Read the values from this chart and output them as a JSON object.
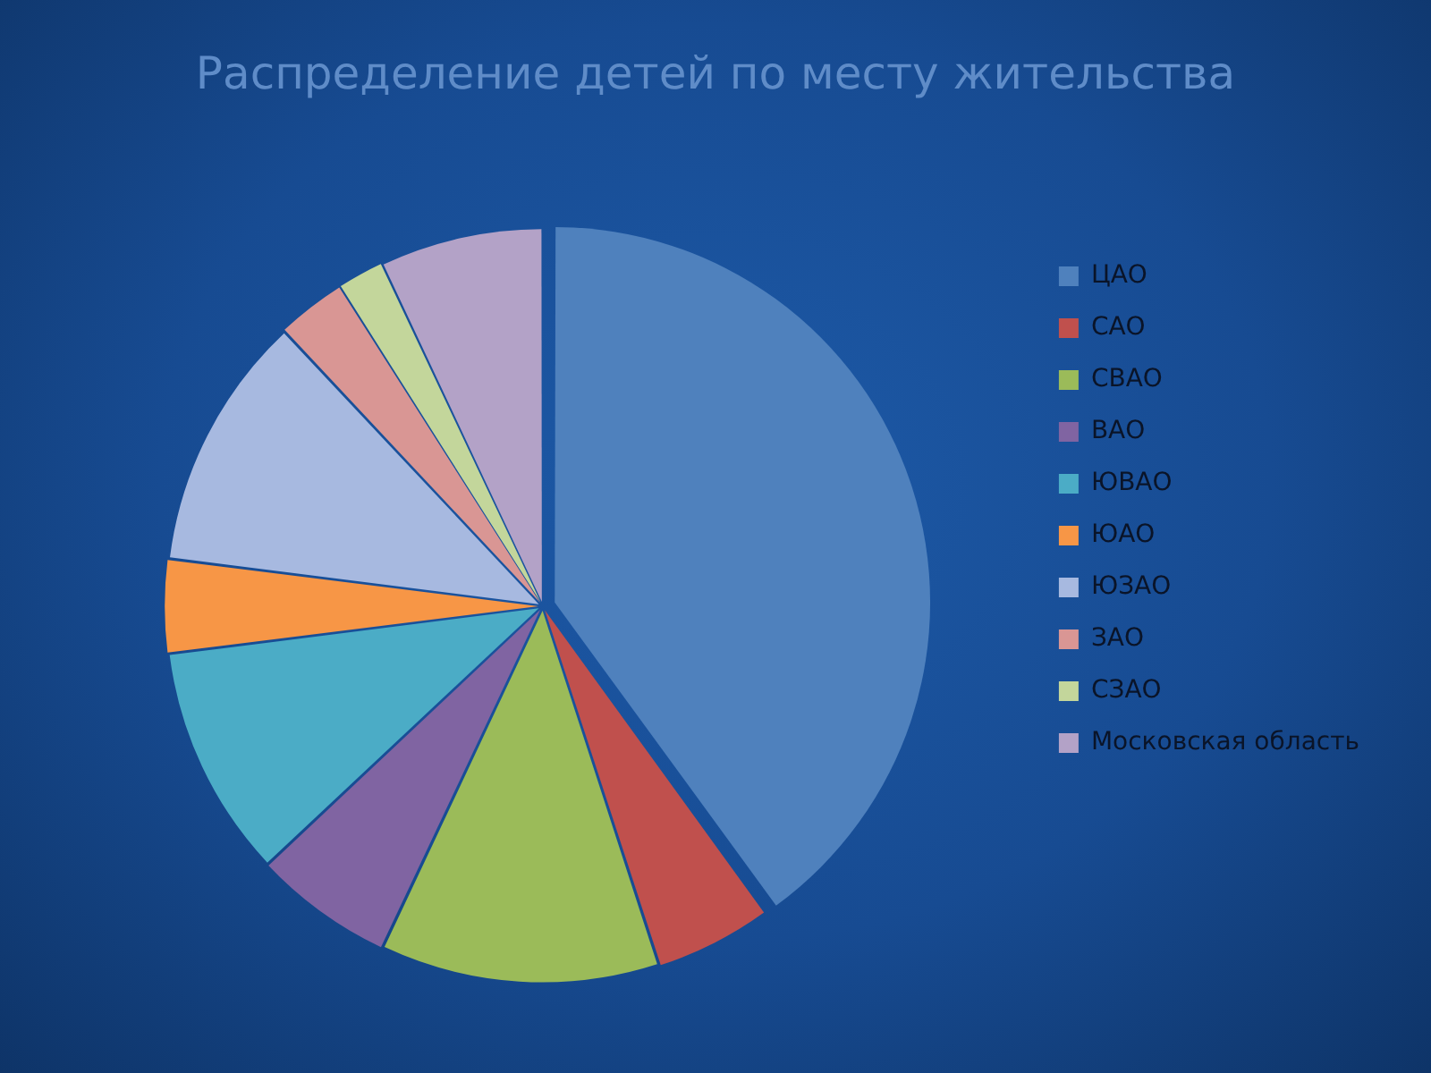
{
  "chart_data": {
    "type": "pie",
    "title": "Распределение детей по месту жительства",
    "categories": [
      "ЦАО",
      "САО",
      "СВАО",
      "ВАО",
      "ЮВАО",
      "ЮАО",
      "ЮЗАО",
      "ЗАО",
      "СЗАО",
      "Московская область"
    ],
    "values": [
      40,
      5,
      12,
      6,
      10,
      4,
      11,
      3,
      2,
      7
    ],
    "colors": [
      "#4f81bd",
      "#c0504d",
      "#9bbb59",
      "#8064a2",
      "#4bacc6",
      "#f79646",
      "#a7b9e0",
      "#d99694",
      "#c3d69b",
      "#b3a2c7"
    ],
    "legend": "right"
  }
}
